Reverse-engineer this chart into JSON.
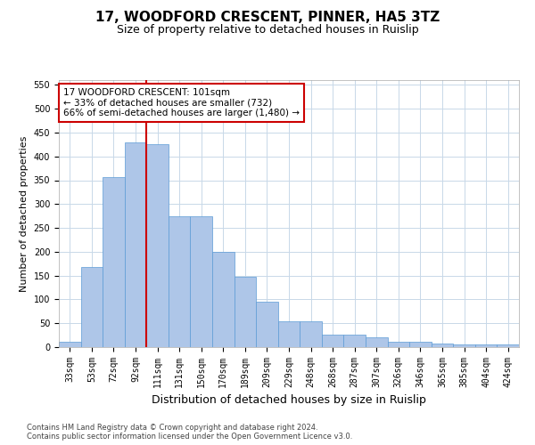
{
  "title": "17, WOODFORD CRESCENT, PINNER, HA5 3TZ",
  "subtitle": "Size of property relative to detached houses in Ruislip",
  "xlabel": "Distribution of detached houses by size in Ruislip",
  "ylabel": "Number of detached properties",
  "categories": [
    "33sqm",
    "53sqm",
    "72sqm",
    "92sqm",
    "111sqm",
    "131sqm",
    "150sqm",
    "170sqm",
    "189sqm",
    "209sqm",
    "229sqm",
    "248sqm",
    "268sqm",
    "287sqm",
    "307sqm",
    "326sqm",
    "346sqm",
    "365sqm",
    "385sqm",
    "404sqm",
    "424sqm"
  ],
  "values": [
    12,
    168,
    357,
    430,
    425,
    275,
    275,
    200,
    148,
    95,
    55,
    55,
    27,
    27,
    20,
    12,
    12,
    8,
    5,
    5,
    5
  ],
  "bar_color": "#aec6e8",
  "bar_edge_color": "#5b9bd5",
  "annotation_text": "17 WOODFORD CRESCENT: 101sqm\n← 33% of detached houses are smaller (732)\n66% of semi-detached houses are larger (1,480) →",
  "annotation_box_color": "#ffffff",
  "annotation_box_edge": "#cc0000",
  "vline_color": "#cc0000",
  "vline_x": 3.5,
  "footer_line1": "Contains HM Land Registry data © Crown copyright and database right 2024.",
  "footer_line2": "Contains public sector information licensed under the Open Government Licence v3.0.",
  "title_fontsize": 11,
  "subtitle_fontsize": 9,
  "xlabel_fontsize": 9,
  "ylabel_fontsize": 8,
  "tick_fontsize": 7,
  "annot_fontsize": 7.5,
  "footer_fontsize": 6,
  "ylim": [
    0,
    560
  ],
  "yticks": [
    0,
    50,
    100,
    150,
    200,
    250,
    300,
    350,
    400,
    450,
    500,
    550
  ],
  "background_color": "#ffffff",
  "grid_color": "#c8d8e8"
}
